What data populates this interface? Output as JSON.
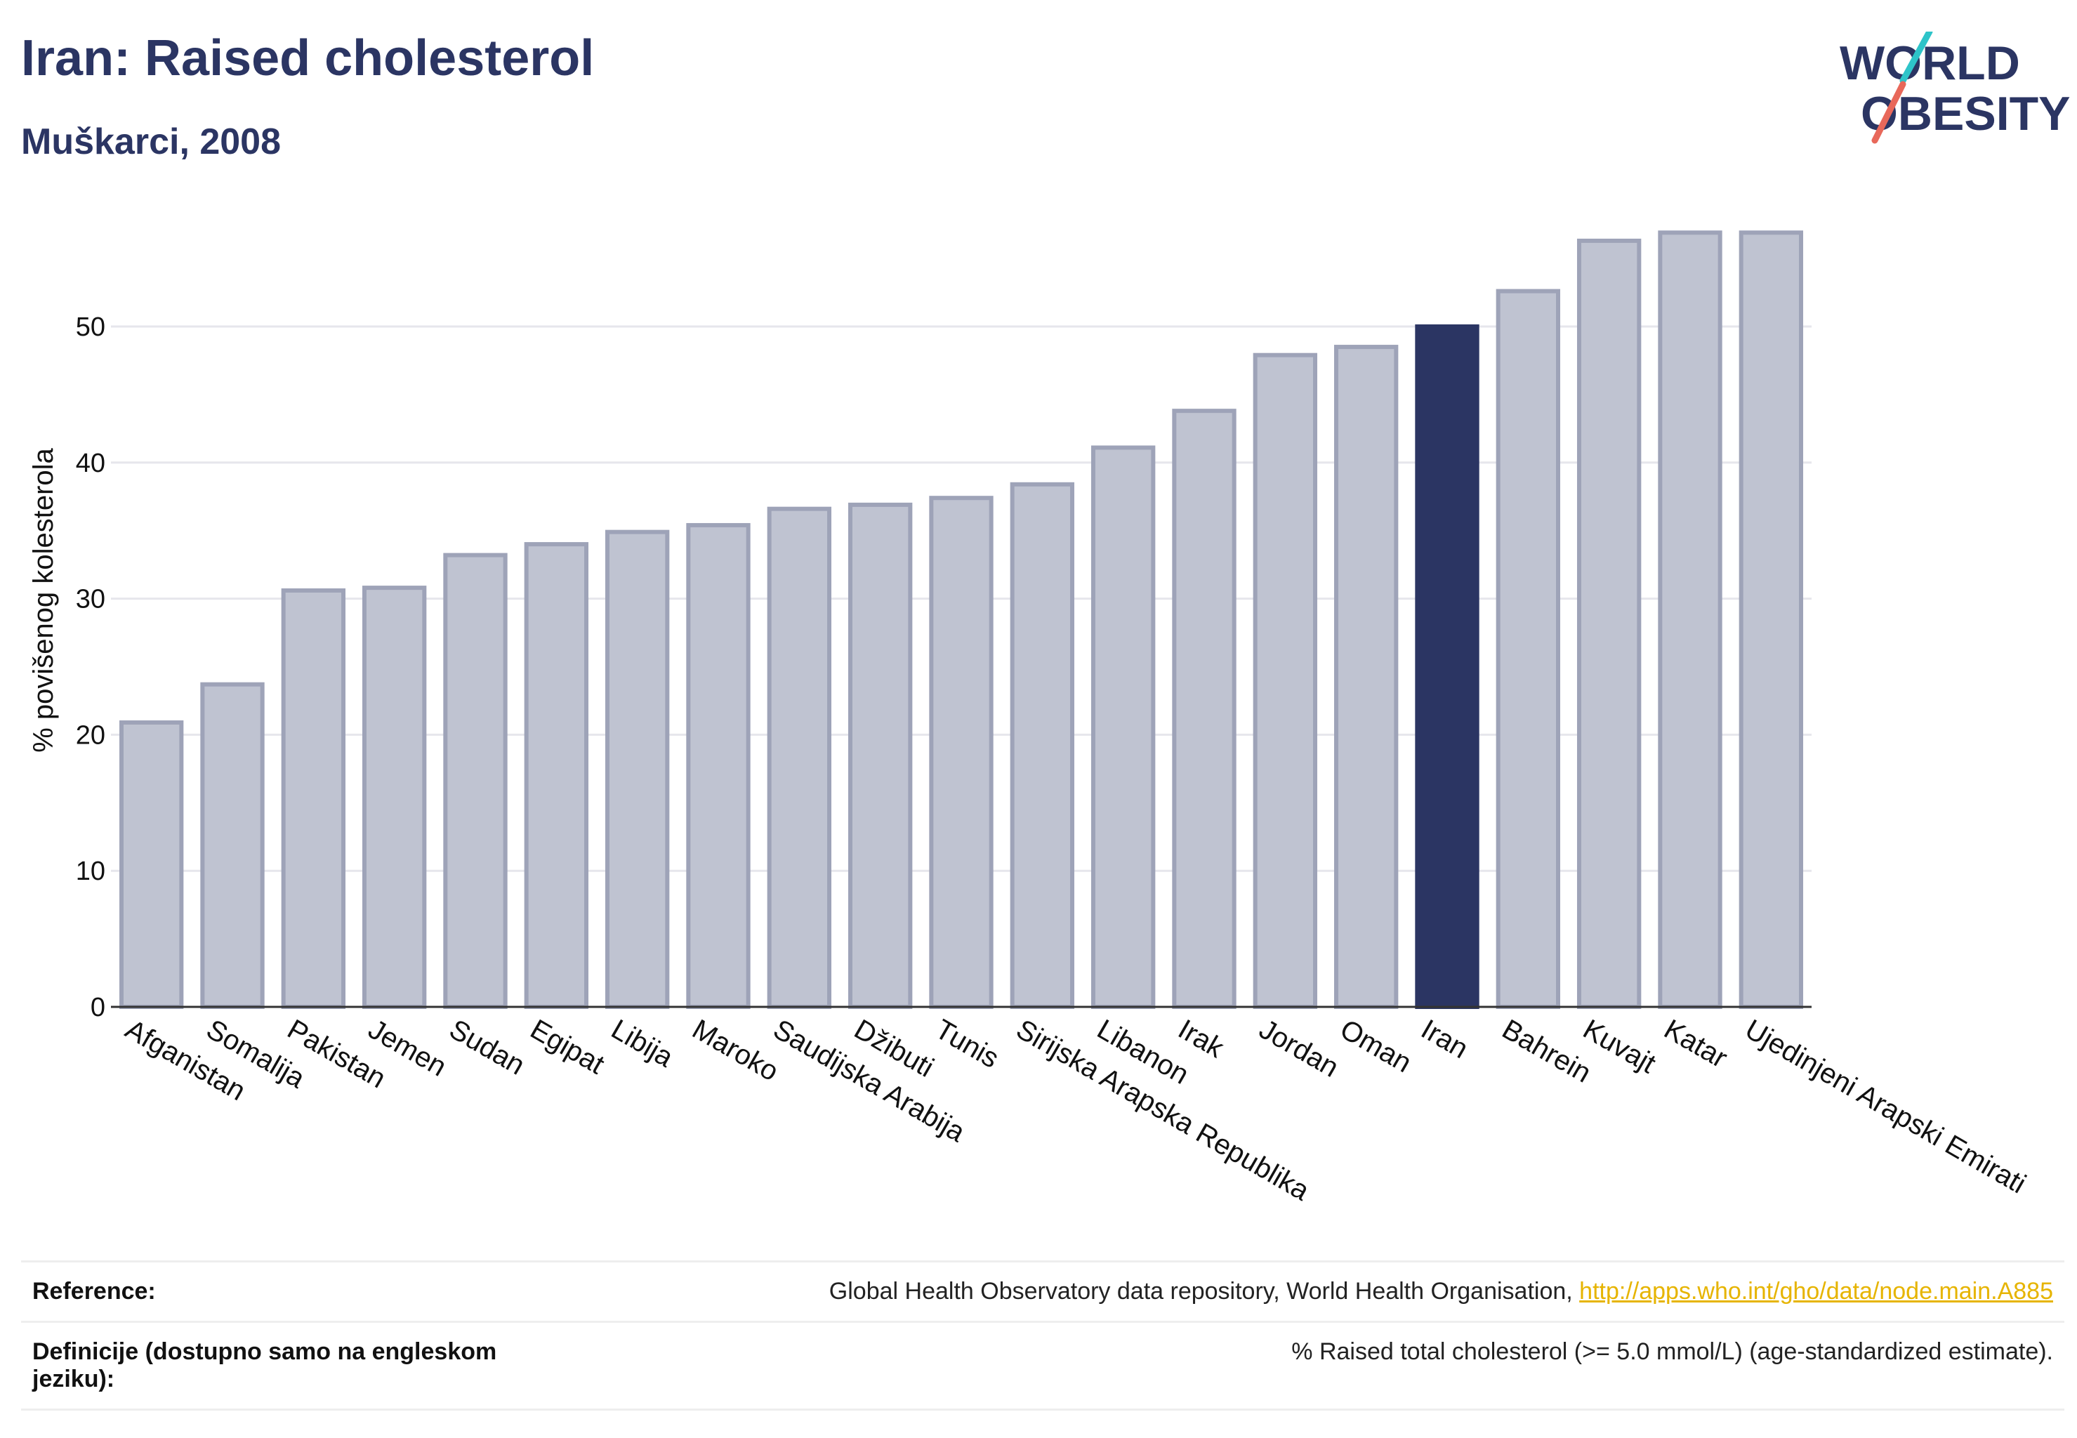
{
  "header": {
    "title": "Iran: Raised cholesterol",
    "subtitle": "Muškarci, 2008"
  },
  "logo": {
    "line1": "WORLD",
    "line2": "OBESITY",
    "accent_colors": [
      "#2ec4c9",
      "#e8685a"
    ],
    "text_color": "#2b3563"
  },
  "colors": {
    "bar_default": "#bfc3d1",
    "bar_border": "#9ea3b8",
    "bar_highlight": "#2b3563",
    "grid": "#e6e6ec"
  },
  "chart_data": {
    "type": "bar",
    "title": "",
    "xlabel": "",
    "ylabel": "% povišenog kolesterola",
    "ylim": [
      0,
      58
    ],
    "yticks": [
      0,
      10,
      20,
      30,
      40,
      50
    ],
    "grid": true,
    "highlight": "Iran",
    "categories": [
      "Afganistan",
      "Somalija",
      "Pakistan",
      "Jemen",
      "Sudan",
      "Egipat",
      "Libija",
      "Maroko",
      "Saudijska Arabija",
      "Džibuti",
      "Tunis",
      "Sirijska Arapska Republika",
      "Libanon",
      "Irak",
      "Jordan",
      "Oman",
      "Iran",
      "Bahrein",
      "Kuvajt",
      "Katar",
      "Ujedinjeni Arapski Emirati"
    ],
    "values": [
      20.9,
      23.7,
      30.6,
      30.8,
      33.2,
      34.0,
      34.9,
      35.4,
      36.6,
      36.9,
      37.4,
      38.4,
      41.1,
      43.8,
      47.9,
      48.5,
      50.0,
      52.6,
      56.3,
      56.9,
      56.9
    ]
  },
  "reference": {
    "label": "Reference:",
    "text": "Global Health Observatory data repository, World Health Organisation, ",
    "link": "http://apps.who.int/gho/data/node.main.A885"
  },
  "definition": {
    "label": "Definicije (dostupno samo na engleskom jeziku):",
    "text": "% Raised total cholesterol (>= 5.0 mmol/L) (age-standardized estimate)."
  }
}
